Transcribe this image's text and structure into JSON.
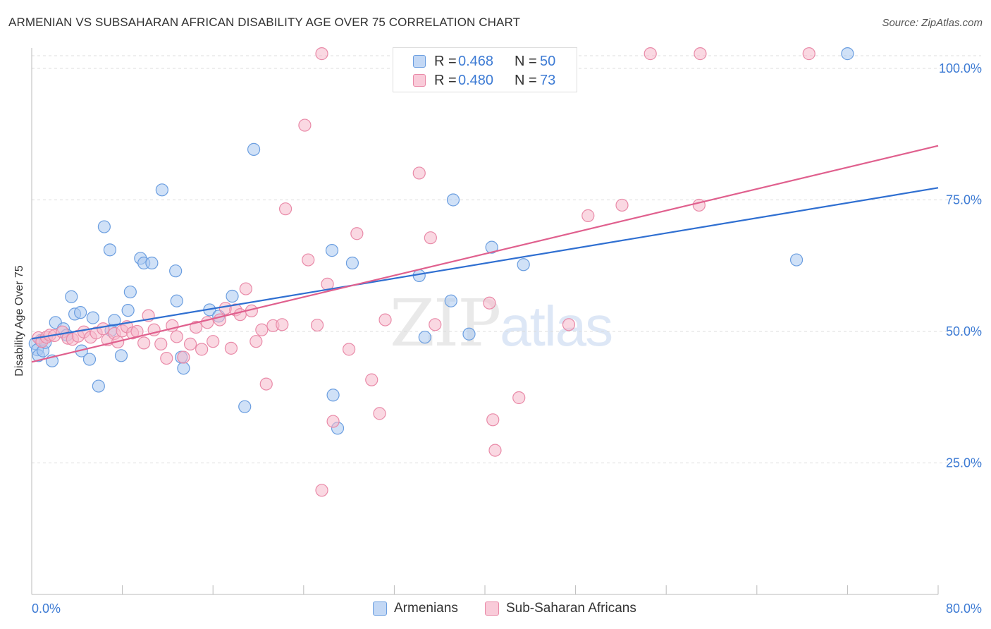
{
  "title": "ARMENIAN VS SUBSAHARAN AFRICAN DISABILITY AGE OVER 75 CORRELATION CHART",
  "source": "Source: ZipAtlas.com",
  "watermark": {
    "zip": "ZIP",
    "atlas": "atlas"
  },
  "legend": {
    "armenians": {
      "r_label": "R =",
      "r_value": "0.468",
      "n_label": "N =",
      "n_value": "50"
    },
    "subsaharan": {
      "r_label": "R =",
      "r_value": "0.480",
      "n_label": "N =",
      "n_value": "73"
    }
  },
  "bottom_legend": {
    "armenians": "Armenians",
    "subsaharan": "Sub-Saharan Africans"
  },
  "colors": {
    "armenians_fill": "#a9c8f0",
    "armenians_stroke": "#6b9ee0",
    "armenians_line": "#2f6fd1",
    "subsaharan_fill": "#f6b8cb",
    "subsaharan_stroke": "#e98aa8",
    "subsaharan_line": "#e0608e",
    "tick_text": "#3d7bd4"
  },
  "chart_data": {
    "type": "scatter",
    "title": "ARMENIAN VS SUBSAHARAN AFRICAN DISABILITY AGE OVER 75 CORRELATION CHART",
    "xlabel": "",
    "ylabel": "Disability Age Over 75",
    "xlim": [
      0,
      80
    ],
    "ylim": [
      0,
      100
    ],
    "x_tick_labels": [
      "0.0%",
      "80.0%"
    ],
    "y_ticks": [
      25,
      50,
      75,
      100
    ],
    "y_tick_labels": [
      "25.0%",
      "50.0%",
      "75.0%",
      "100.0%"
    ],
    "grid": "horizontal dashed",
    "legend_position": "top-center",
    "series": [
      {
        "name": "Armenians",
        "r": 0.468,
        "n": 50,
        "trend": {
          "x": [
            0,
            80
          ],
          "y": [
            48.6,
            77.3
          ]
        },
        "points": [
          [
            0.3,
            47.7
          ],
          [
            0.5,
            46.5
          ],
          [
            0.6,
            45.4
          ],
          [
            0.8,
            48.3
          ],
          [
            1.0,
            46.3
          ],
          [
            1.2,
            47.9
          ],
          [
            1.8,
            44.4
          ],
          [
            2.1,
            51.7
          ],
          [
            2.8,
            50.5
          ],
          [
            3.1,
            49.3
          ],
          [
            3.5,
            56.6
          ],
          [
            3.8,
            53.3
          ],
          [
            4.3,
            53.6
          ],
          [
            4.4,
            46.3
          ],
          [
            5.1,
            44.7
          ],
          [
            5.4,
            52.6
          ],
          [
            5.9,
            39.6
          ],
          [
            6.4,
            69.9
          ],
          [
            6.9,
            65.5
          ],
          [
            7.0,
            50.2
          ],
          [
            7.3,
            52.1
          ],
          [
            7.9,
            45.4
          ],
          [
            8.5,
            54.0
          ],
          [
            8.7,
            57.5
          ],
          [
            9.6,
            63.9
          ],
          [
            9.9,
            63.0
          ],
          [
            10.6,
            63.0
          ],
          [
            11.5,
            76.9
          ],
          [
            12.7,
            61.5
          ],
          [
            12.8,
            55.8
          ],
          [
            13.2,
            45.1
          ],
          [
            13.4,
            43.0
          ],
          [
            15.7,
            54.1
          ],
          [
            16.5,
            52.9
          ],
          [
            17.7,
            56.7
          ],
          [
            18.8,
            35.7
          ],
          [
            19.6,
            84.6
          ],
          [
            26.5,
            65.4
          ],
          [
            26.6,
            37.9
          ],
          [
            27.0,
            31.6
          ],
          [
            28.3,
            63.0
          ],
          [
            34.2,
            60.6
          ],
          [
            34.7,
            48.9
          ],
          [
            37.0,
            55.8
          ],
          [
            37.2,
            75.0
          ],
          [
            38.6,
            49.5
          ],
          [
            40.6,
            66.0
          ],
          [
            43.4,
            62.7
          ],
          [
            67.5,
            63.6
          ],
          [
            72.0,
            102.8
          ]
        ]
      },
      {
        "name": "Sub-Saharan Africans",
        "r": 0.48,
        "n": 73,
        "trend": {
          "x": [
            0,
            80
          ],
          "y": [
            44.2,
            85.3
          ]
        },
        "points": [
          [
            0.6,
            48.8
          ],
          [
            0.9,
            48.1
          ],
          [
            1.3,
            48.9
          ],
          [
            1.6,
            49.3
          ],
          [
            2.0,
            49.2
          ],
          [
            2.7,
            49.9
          ],
          [
            3.2,
            48.7
          ],
          [
            3.6,
            48.5
          ],
          [
            4.1,
            49.1
          ],
          [
            4.6,
            49.9
          ],
          [
            5.2,
            48.9
          ],
          [
            5.7,
            49.7
          ],
          [
            6.3,
            50.5
          ],
          [
            6.7,
            48.4
          ],
          [
            7.3,
            49.6
          ],
          [
            7.6,
            48.0
          ],
          [
            8.0,
            50.1
          ],
          [
            8.4,
            50.9
          ],
          [
            8.9,
            49.7
          ],
          [
            9.3,
            50.0
          ],
          [
            9.9,
            47.8
          ],
          [
            10.3,
            53.0
          ],
          [
            10.8,
            50.3
          ],
          [
            11.4,
            47.6
          ],
          [
            11.9,
            44.9
          ],
          [
            12.4,
            51.1
          ],
          [
            12.8,
            49.0
          ],
          [
            13.4,
            45.1
          ],
          [
            14.0,
            47.6
          ],
          [
            14.5,
            50.8
          ],
          [
            15.0,
            46.6
          ],
          [
            15.5,
            51.7
          ],
          [
            16.0,
            48.1
          ],
          [
            16.6,
            52.2
          ],
          [
            17.1,
            54.4
          ],
          [
            17.6,
            46.8
          ],
          [
            18.0,
            54.1
          ],
          [
            18.4,
            53.2
          ],
          [
            18.9,
            58.1
          ],
          [
            19.4,
            53.9
          ],
          [
            19.8,
            48.1
          ],
          [
            20.3,
            50.3
          ],
          [
            20.7,
            40.0
          ],
          [
            21.3,
            51.1
          ],
          [
            22.1,
            51.3
          ],
          [
            22.4,
            73.3
          ],
          [
            24.1,
            89.2
          ],
          [
            24.4,
            63.6
          ],
          [
            25.2,
            51.2
          ],
          [
            25.6,
            19.8
          ],
          [
            25.6,
            102.8
          ],
          [
            26.1,
            59.0
          ],
          [
            26.6,
            32.9
          ],
          [
            28.0,
            46.6
          ],
          [
            28.7,
            68.6
          ],
          [
            30.0,
            40.8
          ],
          [
            30.7,
            34.4
          ],
          [
            31.2,
            52.2
          ],
          [
            33.0,
            102.8
          ],
          [
            34.2,
            80.1
          ],
          [
            35.2,
            67.8
          ],
          [
            35.6,
            51.3
          ],
          [
            40.4,
            55.4
          ],
          [
            40.7,
            33.2
          ],
          [
            40.9,
            27.4
          ],
          [
            43.0,
            37.4
          ],
          [
            47.4,
            51.3
          ],
          [
            49.1,
            72.0
          ],
          [
            52.1,
            74.0
          ],
          [
            54.6,
            102.8
          ],
          [
            58.9,
            74.0
          ],
          [
            59.0,
            102.8
          ],
          [
            68.6,
            102.8
          ]
        ]
      }
    ]
  }
}
